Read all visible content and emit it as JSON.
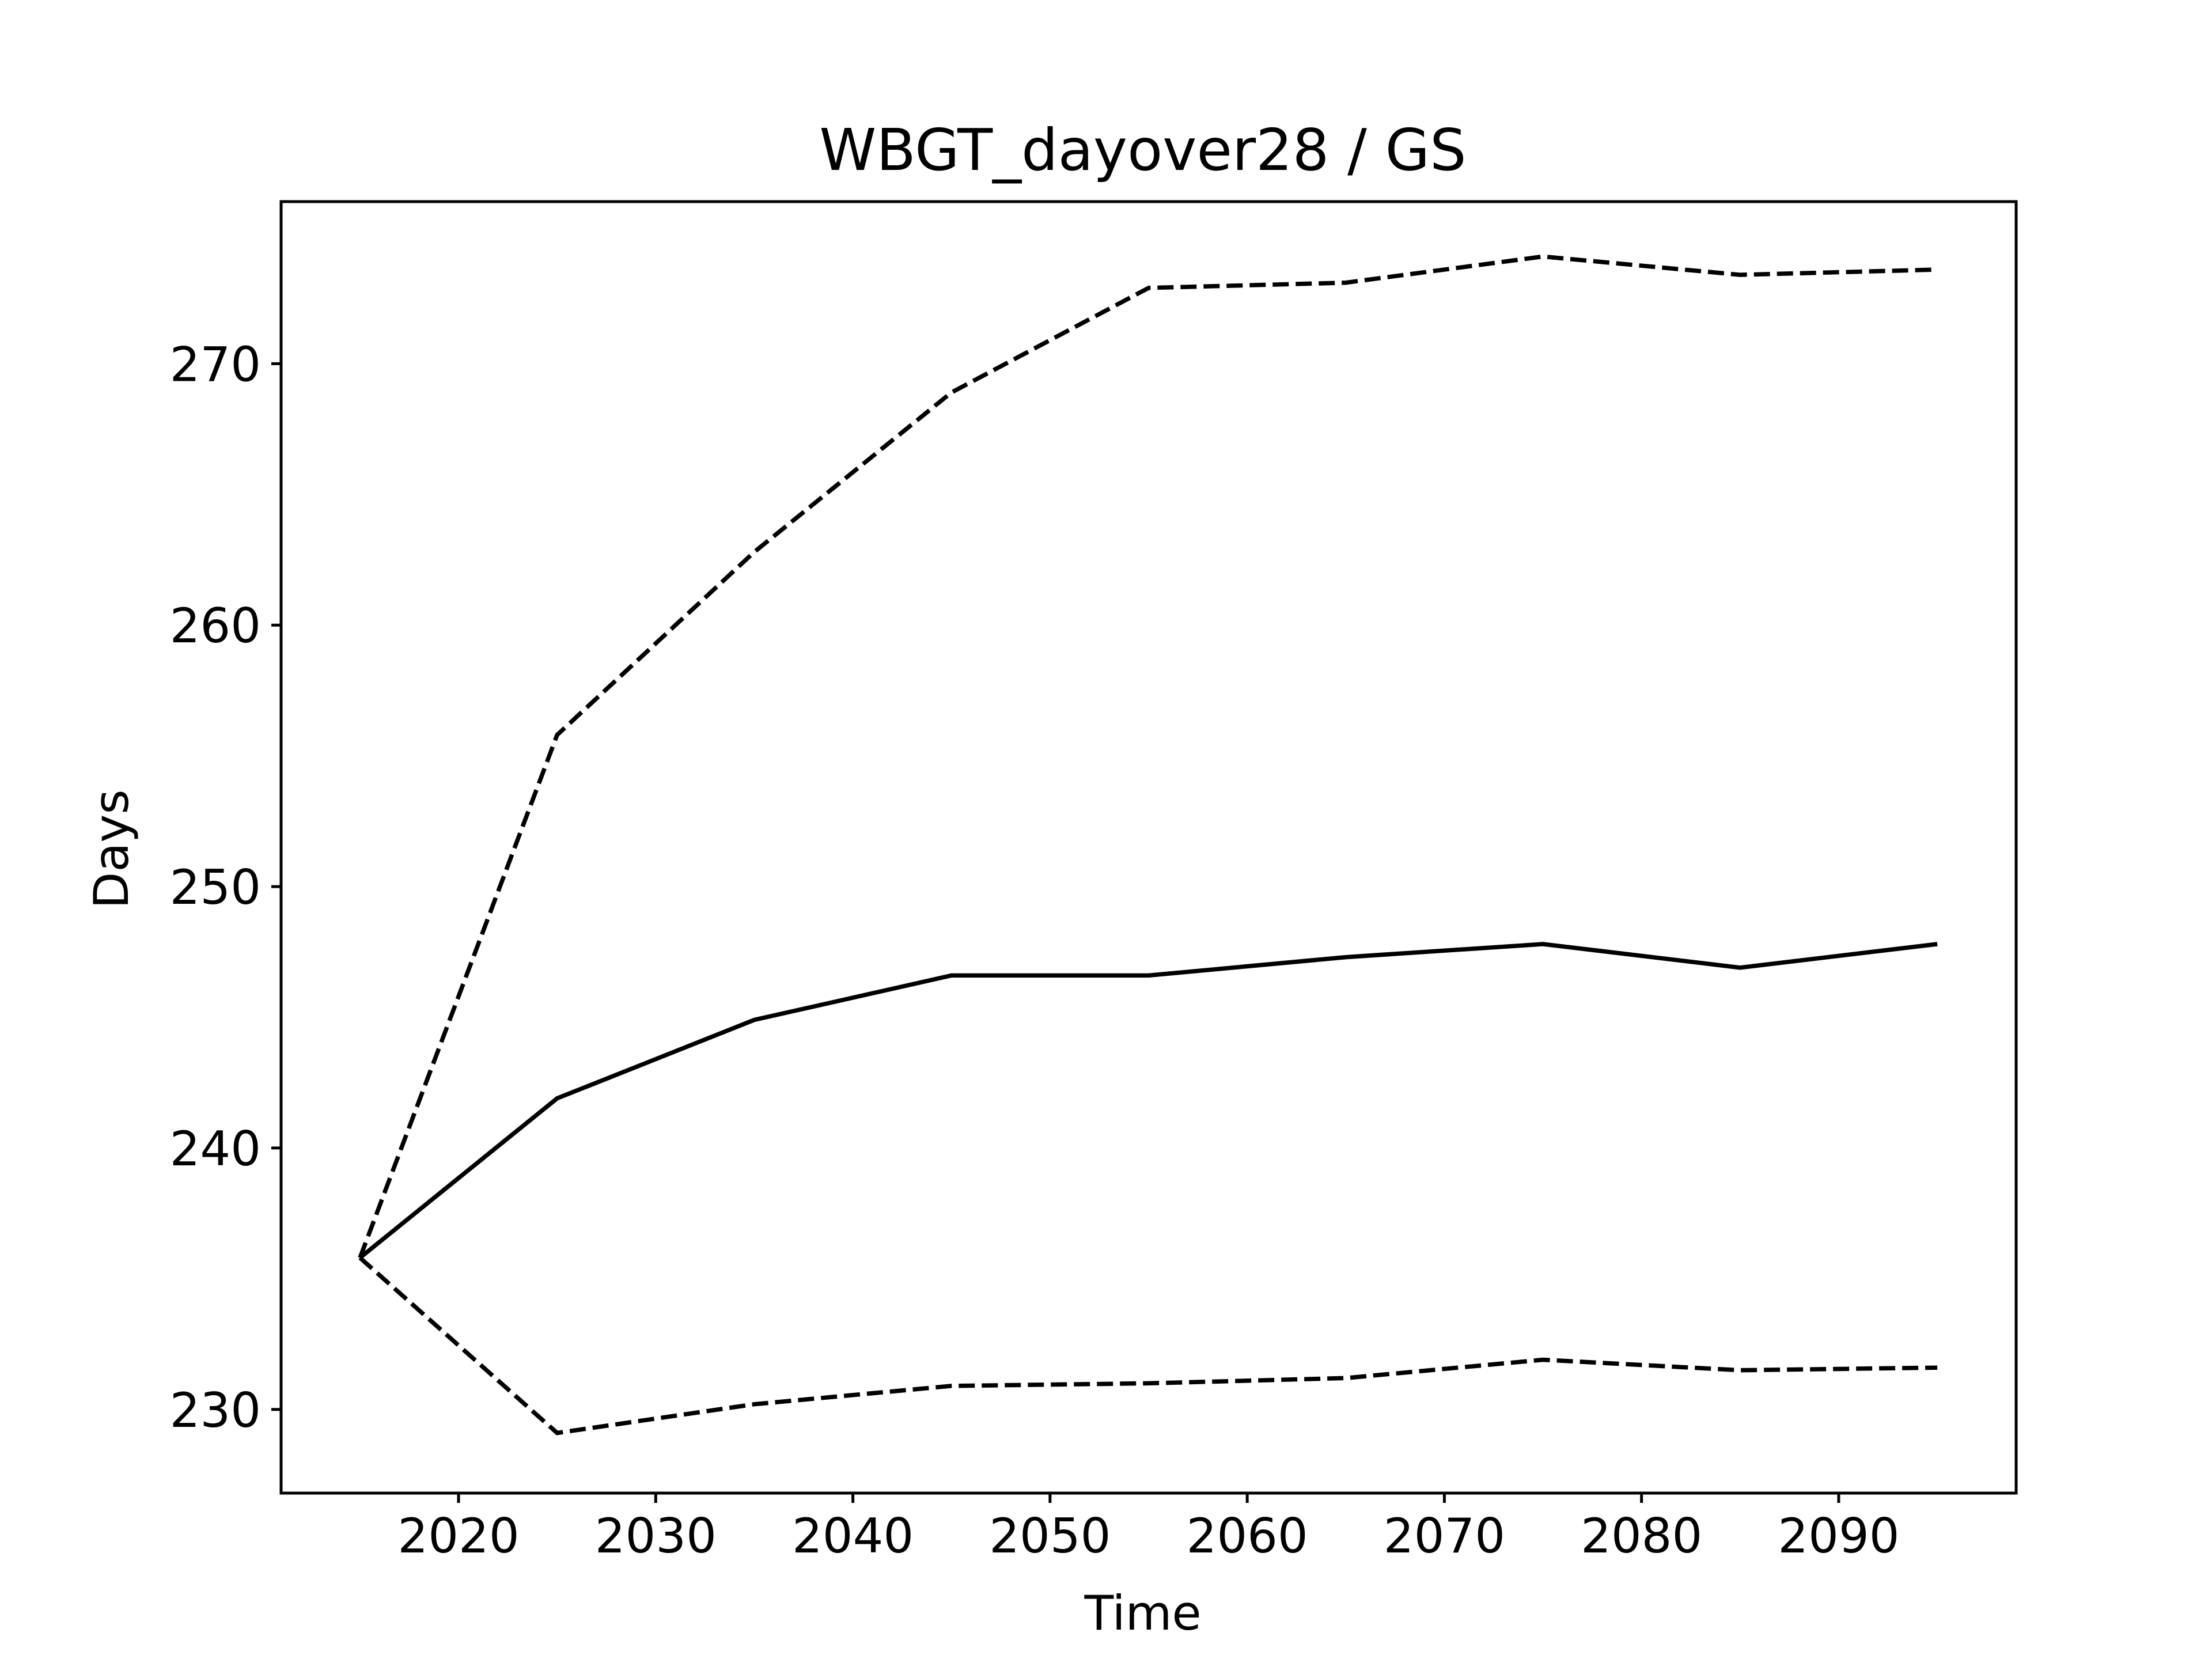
{
  "chart_data": {
    "type": "line",
    "title": "WBGT_dayover28 / GS",
    "xlabel": "Time",
    "ylabel": "Days",
    "xlim": [
      2011,
      2099
    ],
    "ylim": [
      226.8,
      276.2
    ],
    "x_ticks": [
      2020,
      2030,
      2040,
      2050,
      2060,
      2070,
      2080,
      2090
    ],
    "y_ticks": [
      230,
      240,
      250,
      260,
      270
    ],
    "grid": false,
    "legend": "none",
    "x": [
      2015,
      2025,
      2035,
      2045,
      2055,
      2065,
      2075,
      2085,
      2095
    ],
    "series": [
      {
        "style": "dashed",
        "color": "#000000",
        "values": [
          235.8,
          255.8,
          262.8,
          268.9,
          272.9,
          273.1,
          274.1,
          273.4,
          273.6
        ]
      },
      {
        "style": "solid",
        "color": "#000000",
        "values": [
          235.8,
          241.9,
          244.9,
          246.6,
          246.6,
          247.3,
          247.8,
          246.9,
          247.8
        ]
      },
      {
        "style": "dashed",
        "color": "#000000",
        "values": [
          235.8,
          229.1,
          230.2,
          230.9,
          231.0,
          231.2,
          231.9,
          231.5,
          231.6
        ]
      }
    ]
  }
}
